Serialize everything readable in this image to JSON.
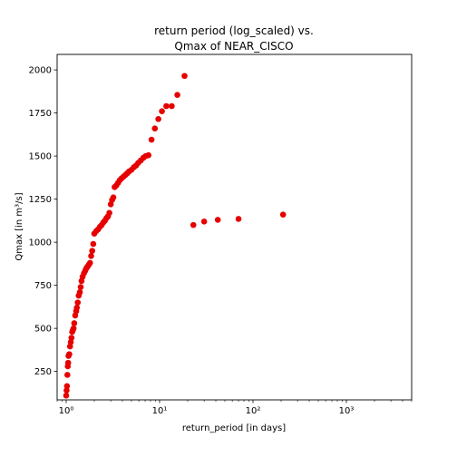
{
  "chart_data": {
    "type": "scatter",
    "title_line1": "return period (log_scaled) vs.",
    "title_line2": "Qmax of NEAR_CISCO",
    "xlabel": "return_period [in days]",
    "ylabel": "Qmax [in m³/s]",
    "x_scale": "log",
    "xlim": [
      0.8,
      5000
    ],
    "ylim": [
      85,
      2090
    ],
    "x_ticks": [
      {
        "value": 1,
        "label": "10⁰"
      },
      {
        "value": 10,
        "label": "10¹"
      },
      {
        "value": 100,
        "label": "10²"
      },
      {
        "value": 1000,
        "label": "10³"
      }
    ],
    "y_ticks": [
      250,
      500,
      750,
      1000,
      1250,
      1500,
      1750,
      2000
    ],
    "grid": false,
    "marker_color": "#e60000",
    "series": [
      {
        "x": [
          1.0,
          1.01,
          1.02,
          1.03,
          1.04,
          1.05,
          1.06,
          1.08,
          1.1,
          1.12,
          1.14,
          1.16,
          1.18,
          1.2,
          1.22,
          1.25,
          1.28,
          1.3,
          1.33,
          1.36,
          1.4,
          1.43,
          1.46,
          1.5,
          1.55,
          1.6,
          1.65,
          1.7,
          1.75,
          1.8,
          1.85,
          1.9,
          1.95,
          2.0,
          2.1,
          2.2,
          2.3,
          2.4,
          2.5,
          2.6,
          2.7,
          2.8,
          2.9,
          3.0,
          3.1,
          3.2,
          3.3,
          3.45,
          3.6,
          3.75,
          3.9,
          4.1,
          4.3,
          4.5,
          4.7,
          5.0,
          5.3,
          5.6,
          5.9,
          6.3,
          6.7,
          7.1,
          7.6,
          8.2,
          8.9,
          9.7,
          10.6,
          11.8,
          13.5,
          15.5,
          18.5,
          23,
          30,
          42,
          70,
          210
        ],
        "y": [
          110,
          140,
          165,
          230,
          280,
          300,
          340,
          350,
          395,
          420,
          445,
          480,
          490,
          500,
          530,
          575,
          600,
          620,
          650,
          690,
          710,
          740,
          775,
          800,
          820,
          835,
          850,
          860,
          870,
          880,
          920,
          950,
          990,
          1050,
          1065,
          1075,
          1090,
          1100,
          1115,
          1125,
          1140,
          1150,
          1170,
          1220,
          1245,
          1260,
          1320,
          1330,
          1345,
          1360,
          1370,
          1380,
          1390,
          1400,
          1410,
          1420,
          1435,
          1445,
          1460,
          1475,
          1490,
          1500,
          1505,
          1595,
          1660,
          1715,
          1760,
          1790,
          1790,
          1855,
          1965,
          1100,
          1120,
          1130,
          1135,
          1160
        ]
      }
    ]
  }
}
